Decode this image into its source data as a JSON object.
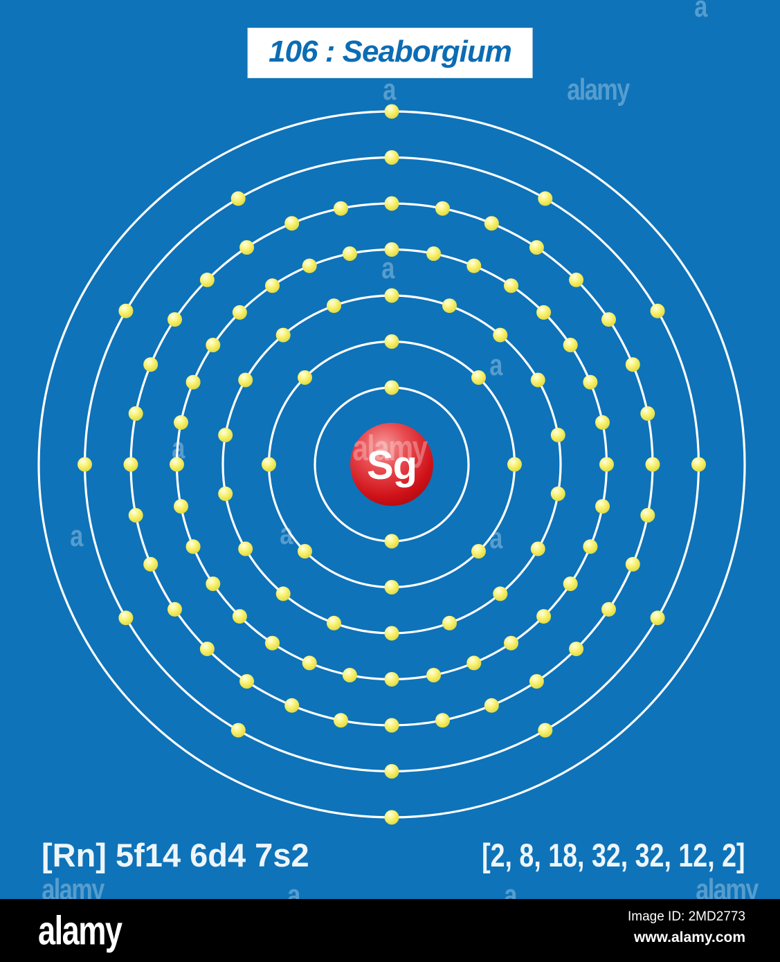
{
  "title": "106 : Seaborgium",
  "atom": {
    "symbol": "Sg",
    "atomic_number": "106",
    "element_name": "Seaborgium",
    "electron_configuration": "[Rn] 5f14 6d4 7s2",
    "shells_label": "[2, 8, 18, 32, 32, 12, 2]",
    "shells": [
      2,
      8,
      18,
      32,
      32,
      12,
      2
    ]
  },
  "colors": {
    "background": "#0e73b9",
    "title_text": "#0c6cb3",
    "orbit": "#ffffff",
    "electron_core": "#ffffe8",
    "electron_body": "#f8f170",
    "electron_edge": "#ddd535",
    "nucleus_highlight": "#f59a9a",
    "nucleus_mid": "#e84b50",
    "nucleus_body": "#cf1118",
    "nucleus_edge": "#94070b",
    "nucleus_text": "#ffffff",
    "label_text": "#eef5f9",
    "footer_background": "#000000"
  },
  "watermark": {
    "brand": "alamy",
    "letter": "a",
    "image_id": "Image ID: 2MD2773",
    "url": "www.alamy.com"
  }
}
